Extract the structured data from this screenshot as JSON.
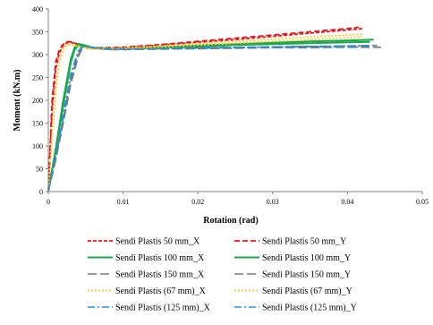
{
  "chart_data": {
    "type": "line",
    "title": "",
    "xlabel": "Rotation (rad)",
    "ylabel": "Moment (kN.m)",
    "xlim": [
      0,
      0.05
    ],
    "ylim": [
      0,
      400
    ],
    "x_ticks": [
      0,
      0.01,
      0.02,
      0.03,
      0.04,
      0.05
    ],
    "x_tick_labels": [
      "0",
      "0.01",
      "0.02",
      "0.03",
      "0.04",
      "0.05"
    ],
    "y_ticks": [
      0,
      50,
      100,
      150,
      200,
      250,
      300,
      350,
      400
    ],
    "y_tick_labels": [
      "0",
      "50",
      "100",
      "150",
      "200",
      "250",
      "300",
      "350",
      "400"
    ],
    "grid": false,
    "legend_position": "bottom",
    "series": [
      {
        "name": "Sendi Plastis 50 mm_X",
        "color": "#e8141e",
        "dash": "4,2",
        "width": 1.8,
        "x": [
          0,
          0.0005,
          0.001,
          0.0015,
          0.002,
          0.0025,
          0.003,
          0.004,
          0.005,
          0.006,
          0.008,
          0.01,
          0.015,
          0.02,
          0.025,
          0.03,
          0.035,
          0.04,
          0.042
        ],
        "y": [
          0,
          180,
          270,
          305,
          320,
          326,
          327,
          322,
          316,
          314,
          314,
          315,
          321,
          327,
          333,
          340,
          347,
          354,
          357
        ]
      },
      {
        "name": "Sendi Plastis 50 mm_Y",
        "color": "#e8141e",
        "dash": "6,3",
        "width": 1.8,
        "x": [
          0,
          0.0005,
          0.001,
          0.0015,
          0.002,
          0.0025,
          0.003,
          0.004,
          0.005,
          0.006,
          0.008,
          0.01,
          0.015,
          0.02,
          0.025,
          0.03,
          0.035,
          0.04,
          0.0415
        ],
        "y": [
          0,
          200,
          285,
          312,
          323,
          328,
          328,
          323,
          317,
          315,
          315,
          316,
          322,
          329,
          336,
          343,
          350,
          357,
          360
        ]
      },
      {
        "name": "Sendi Plastis 100 mm_X",
        "color": "#1aa84a",
        "dash": "",
        "width": 2,
        "x": [
          0,
          0.001,
          0.002,
          0.003,
          0.0035,
          0.004,
          0.005,
          0.006,
          0.008,
          0.01,
          0.015,
          0.02,
          0.025,
          0.03,
          0.035,
          0.04,
          0.043
        ],
        "y": [
          0,
          95,
          200,
          290,
          315,
          324,
          320,
          315,
          313,
          313,
          315,
          318,
          321,
          323,
          325,
          327,
          328
        ]
      },
      {
        "name": "Sendi Plastis 100 mm_Y",
        "color": "#1aa84a",
        "dash": "",
        "width": 2,
        "x": [
          0,
          0.001,
          0.002,
          0.003,
          0.0035,
          0.004,
          0.005,
          0.006,
          0.008,
          0.01,
          0.015,
          0.02,
          0.025,
          0.03,
          0.035,
          0.04,
          0.0435
        ],
        "y": [
          0,
          90,
          190,
          282,
          310,
          320,
          318,
          314,
          312,
          313,
          316,
          320,
          323,
          326,
          329,
          331,
          333
        ]
      },
      {
        "name": "Sendi Plastis 150 mm_X",
        "color": "#7a7a7a",
        "dash": "10,4",
        "width": 1.6,
        "x": [
          0,
          0.001,
          0.002,
          0.003,
          0.004,
          0.0045,
          0.005,
          0.006,
          0.008,
          0.01,
          0.015,
          0.02,
          0.025,
          0.03,
          0.035,
          0.04,
          0.0445
        ],
        "y": [
          0,
          70,
          150,
          235,
          295,
          312,
          316,
          314,
          311,
          311,
          312,
          313,
          314,
          315,
          315,
          316,
          316
        ]
      },
      {
        "name": "Sendi Plastis 150 mm_Y",
        "color": "#7a7a7a",
        "dash": "10,4",
        "width": 1.6,
        "x": [
          0,
          0.001,
          0.002,
          0.003,
          0.004,
          0.0045,
          0.005,
          0.006,
          0.008,
          0.01,
          0.015,
          0.02,
          0.025,
          0.03,
          0.035,
          0.04,
          0.044
        ],
        "y": [
          0,
          75,
          160,
          245,
          300,
          314,
          317,
          315,
          312,
          312,
          313,
          315,
          316,
          317,
          318,
          319,
          320
        ]
      },
      {
        "name": "Sendi Plastis (67 mm)_X",
        "color": "#f0cc33",
        "dash": "2,2",
        "width": 1.8,
        "x": [
          0,
          0.0005,
          0.001,
          0.0015,
          0.002,
          0.0025,
          0.003,
          0.004,
          0.005,
          0.006,
          0.008,
          0.01,
          0.015,
          0.02,
          0.025,
          0.03,
          0.035,
          0.04,
          0.042
        ],
        "y": [
          0,
          130,
          230,
          290,
          315,
          322,
          323,
          319,
          315,
          313,
          313,
          314,
          319,
          324,
          329,
          334,
          339,
          343,
          345
        ]
      },
      {
        "name": "Sendi Plastis (67 mm)_Y",
        "color": "#f0cc33",
        "dash": "2,2",
        "width": 1.8,
        "x": [
          0,
          0.0005,
          0.001,
          0.0015,
          0.002,
          0.0025,
          0.003,
          0.004,
          0.005,
          0.006,
          0.008,
          0.01,
          0.015,
          0.02,
          0.025,
          0.03,
          0.035,
          0.04,
          0.042
        ],
        "y": [
          0,
          120,
          220,
          285,
          312,
          320,
          322,
          318,
          314,
          312,
          312,
          313,
          317,
          321,
          325,
          329,
          333,
          337,
          339
        ]
      },
      {
        "name": "Sendi Plastis (125 mm)_X",
        "color": "#2a8fd6",
        "dash": "8,3,2,3",
        "width": 1.6,
        "x": [
          0,
          0.001,
          0.002,
          0.003,
          0.004,
          0.0045,
          0.005,
          0.006,
          0.008,
          0.01,
          0.015,
          0.02,
          0.025,
          0.03,
          0.035,
          0.04,
          0.0435
        ],
        "y": [
          0,
          75,
          160,
          250,
          305,
          316,
          318,
          315,
          312,
          312,
          313,
          315,
          316,
          317,
          318,
          319,
          320
        ]
      },
      {
        "name": "Sendi Plastis (125 mm)_Y",
        "color": "#2a8fd6",
        "dash": "8,3,2,3",
        "width": 1.6,
        "x": [
          0,
          0.001,
          0.002,
          0.003,
          0.004,
          0.0045,
          0.005,
          0.006,
          0.008,
          0.01,
          0.015,
          0.02,
          0.025,
          0.03,
          0.035,
          0.04,
          0.043
        ],
        "y": [
          0,
          80,
          170,
          258,
          308,
          317,
          318,
          315,
          312,
          312,
          313,
          314,
          315,
          316,
          317,
          317,
          318
        ]
      }
    ]
  }
}
